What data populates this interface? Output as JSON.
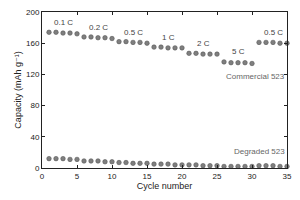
{
  "chart_data": {
    "type": "scatter",
    "x_label": "Cycle number",
    "y_label": "Capacity (mAh g⁻¹)",
    "x": [
      1,
      2,
      3,
      4,
      5,
      6,
      7,
      8,
      9,
      10,
      11,
      12,
      13,
      14,
      15,
      16,
      17,
      18,
      19,
      20,
      21,
      22,
      23,
      24,
      25,
      26,
      27,
      28,
      29,
      30,
      31,
      32,
      33,
      34,
      35
    ],
    "series": [
      {
        "name": "Commercial 523",
        "color": "#7f7f7f",
        "marker": "circle",
        "values": [
          174,
          174,
          173,
          173,
          172,
          168,
          168,
          167,
          167,
          166,
          162,
          162,
          161,
          161,
          160,
          155,
          155,
          154,
          154,
          154,
          147,
          147,
          146,
          146,
          146,
          136,
          135,
          135,
          135,
          134,
          161,
          161,
          161,
          160,
          160
        ]
      },
      {
        "name": "Degraded 523",
        "color": "#7f7f7f",
        "marker": "circle",
        "values": [
          12,
          12,
          12,
          11,
          11,
          9,
          9,
          9,
          8,
          8,
          7,
          7,
          6,
          6,
          6,
          5,
          5,
          5,
          4,
          4,
          4,
          4,
          3,
          3,
          3,
          2,
          2,
          2,
          2,
          2,
          3,
          3,
          3,
          2,
          2
        ]
      }
    ],
    "annotations": [
      {
        "text": "0.1 C",
        "x": 3,
        "y": 186
      },
      {
        "text": "0.2 C",
        "x": 8,
        "y": 180
      },
      {
        "text": "0.5 C",
        "x": 13,
        "y": 174
      },
      {
        "text": "1 C",
        "x": 18,
        "y": 167
      },
      {
        "text": "2 C",
        "x": 23,
        "y": 160
      },
      {
        "text": "5 C",
        "x": 28,
        "y": 149
      },
      {
        "text": "0.5 C",
        "x": 33,
        "y": 174
      }
    ],
    "xlim": [
      0,
      35
    ],
    "xticks": [
      0,
      5,
      10,
      15,
      20,
      25,
      30,
      35
    ],
    "ylim": [
      0,
      200
    ],
    "yticks": [
      0,
      40,
      80,
      120,
      160,
      200
    ],
    "grid": false
  }
}
